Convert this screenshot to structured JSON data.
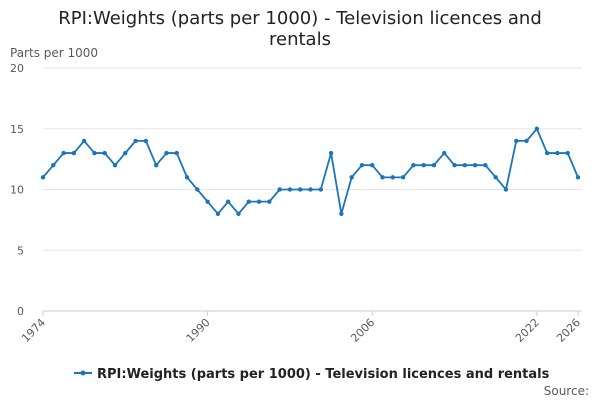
{
  "page_title": "RPI:Weights (parts per 1000) - Television licences and rentals",
  "source_label": "Source:",
  "colors": {
    "series": "#1b75bb",
    "grid": "#e6e6e6",
    "text": "#222222",
    "muted": "#595959"
  },
  "chart_data": {
    "type": "line",
    "title_lines": [
      "RPI:Weights (parts per 1000) - Television licences and",
      "rentals"
    ],
    "ylabel": "Parts per 1000",
    "xlabel": "",
    "xlim": [
      1974,
      2026
    ],
    "ylim": [
      0,
      20
    ],
    "y_ticks": [
      0,
      5,
      10,
      15,
      20
    ],
    "x_ticks": [
      1974,
      1990,
      2006,
      2022,
      2026
    ],
    "grid": true,
    "legend": {
      "placement": "bottom",
      "label": "RPI:Weights (parts per 1000) - Television licences and rentals"
    },
    "series": [
      {
        "name": "RPI:Weights (parts per 1000) - Television licences and rentals",
        "x": [
          1974,
          1975,
          1976,
          1977,
          1978,
          1979,
          1980,
          1981,
          1982,
          1983,
          1984,
          1985,
          1986,
          1987,
          1988,
          1989,
          1990,
          1991,
          1992,
          1993,
          1994,
          1995,
          1996,
          1997,
          1998,
          1999,
          2000,
          2001,
          2002,
          2003,
          2004,
          2005,
          2006,
          2007,
          2008,
          2009,
          2010,
          2011,
          2012,
          2013,
          2014,
          2015,
          2016,
          2017,
          2018,
          2019,
          2020,
          2021,
          2022,
          2023,
          2024,
          2025,
          2026
        ],
        "values": [
          11,
          12,
          13,
          13,
          14,
          13,
          13,
          12,
          13,
          14,
          14,
          12,
          13,
          13,
          11,
          10,
          9,
          8,
          9,
          8,
          9,
          9,
          9,
          10,
          10,
          10,
          10,
          10,
          13,
          8,
          11,
          12,
          12,
          11,
          11,
          11,
          12,
          12,
          12,
          13,
          12,
          12,
          12,
          12,
          11,
          10,
          14,
          14,
          15,
          13,
          13,
          13,
          11
        ]
      }
    ]
  }
}
